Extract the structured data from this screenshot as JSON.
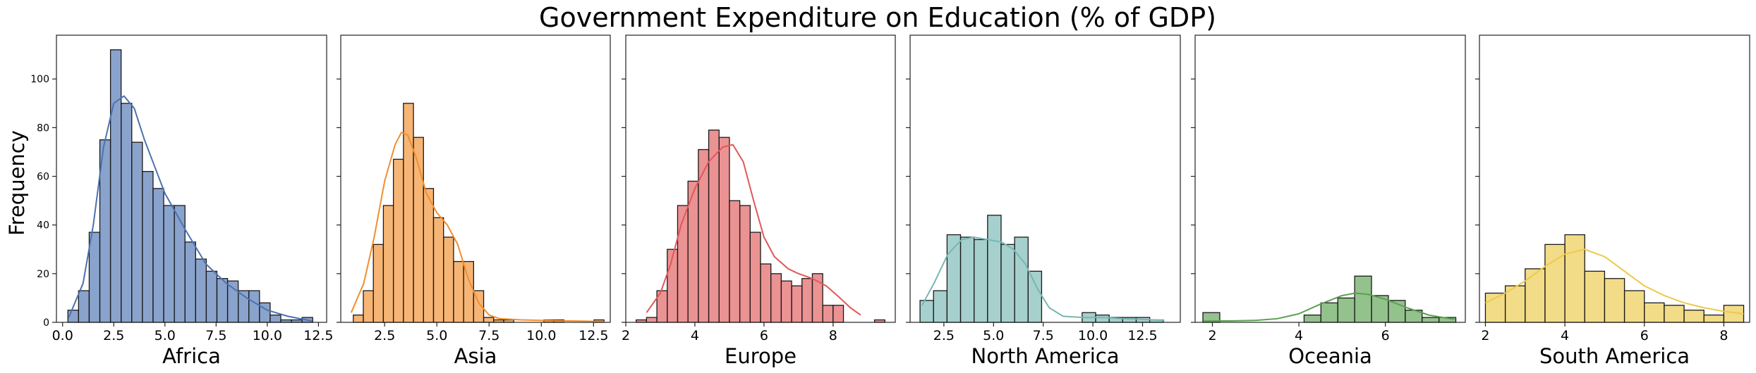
{
  "figure": {
    "title": "Government Expenditure on Education (% of GDP)",
    "ylabel": "Frequency",
    "shared_y_ticks": [
      "0",
      "20",
      "40",
      "60",
      "80",
      "100"
    ]
  },
  "chart_data": [
    {
      "type": "bar",
      "xlabel": "Africa",
      "color": "#4C72B0",
      "xlim": [
        -0.3,
        12.9
      ],
      "ylim": [
        0,
        118
      ],
      "xticks": [
        0.0,
        2.5,
        5.0,
        7.5,
        10.0,
        12.5
      ],
      "xtick_labels": [
        "0.0",
        "2.5",
        "5.0",
        "7.5",
        "10.0",
        "12.5"
      ],
      "yticks": [
        0,
        20,
        40,
        60,
        80,
        100
      ],
      "ytick_labels": [
        "0",
        "20",
        "40",
        "60",
        "80",
        "100"
      ],
      "bin_edges": [
        0.26,
        0.78,
        1.3,
        1.82,
        2.34,
        2.86,
        3.38,
        3.9,
        4.42,
        4.94,
        5.46,
        5.98,
        6.5,
        7.02,
        7.54,
        8.06,
        8.58,
        9.1,
        9.62,
        10.14,
        10.66,
        11.18,
        11.7,
        12.22
      ],
      "counts": [
        5,
        13,
        37,
        75,
        112,
        90,
        74,
        62,
        55,
        48,
        48,
        33,
        26,
        21,
        18,
        17,
        13,
        13,
        8,
        3,
        1,
        1,
        2
      ],
      "kde_x": [
        0.3,
        1.0,
        1.5,
        2.0,
        2.5,
        3.0,
        3.5,
        4.0,
        5.0,
        6.0,
        7.0,
        8.0,
        9.0,
        10.0,
        11.0,
        12.2
      ],
      "kde_y": [
        2,
        16,
        40,
        72,
        90,
        93,
        88,
        75,
        53,
        38,
        24,
        16,
        10,
        5,
        2.5,
        0.5
      ]
    },
    {
      "type": "bar",
      "xlabel": "Asia",
      "color": "#F28E2B",
      "xlim": [
        0.4,
        13.3
      ],
      "ylim": [
        0,
        118
      ],
      "xticks": [
        2.5,
        5.0,
        7.5,
        10.0,
        12.5
      ],
      "xtick_labels": [
        "2.5",
        "5.0",
        "7.5",
        "10.0",
        "12.5"
      ],
      "yticks": [
        0,
        20,
        40,
        60,
        80,
        100
      ],
      "ytick_labels": [],
      "bin_edges": [
        1.0,
        1.48,
        1.96,
        2.44,
        2.92,
        3.4,
        3.88,
        4.36,
        4.84,
        5.32,
        5.8,
        6.28,
        6.76,
        7.24,
        7.72,
        8.2,
        8.68,
        9.16,
        9.64,
        10.12,
        10.6,
        11.08,
        11.56,
        12.04,
        12.52,
        13.0
      ],
      "counts": [
        3,
        13,
        32,
        48,
        67,
        90,
        76,
        55,
        43,
        35,
        25,
        25,
        13,
        2,
        1,
        1,
        0,
        0,
        0,
        1,
        1,
        0,
        0,
        0,
        1
      ],
      "kde_x": [
        0.9,
        1.5,
        2.0,
        2.5,
        3.0,
        3.3,
        3.6,
        4.0,
        4.5,
        5.0,
        5.5,
        6.0,
        6.5,
        7.0,
        7.5,
        8.0,
        9.0,
        10.0,
        11.0,
        12.0,
        13.0
      ],
      "kde_y": [
        4,
        16,
        35,
        58,
        73,
        78,
        77,
        68,
        53,
        45,
        40,
        32,
        18,
        8,
        3,
        1.5,
        1,
        0.8,
        0.6,
        0.5,
        0.3
      ]
    },
    {
      "type": "bar",
      "xlabel": "Europe",
      "color": "#E15759",
      "xlim": [
        2.0,
        9.8
      ],
      "ylim": [
        0,
        118
      ],
      "xticks": [
        2,
        4,
        6,
        8
      ],
      "xtick_labels": [
        "2",
        "4",
        "6",
        "8"
      ],
      "yticks": [
        0,
        20,
        40,
        60,
        80,
        100
      ],
      "ytick_labels": [],
      "bin_edges": [
        2.3,
        2.6,
        2.9,
        3.2,
        3.5,
        3.8,
        4.1,
        4.4,
        4.7,
        5.0,
        5.3,
        5.6,
        5.9,
        6.2,
        6.5,
        6.8,
        7.1,
        7.4,
        7.7,
        8.0,
        8.3,
        8.6,
        8.9,
        9.2,
        9.5
      ],
      "counts": [
        1,
        2,
        13,
        30,
        48,
        58,
        71,
        79,
        76,
        50,
        48,
        37,
        24,
        20,
        17,
        15,
        18,
        20,
        7,
        7,
        0,
        0,
        0,
        1
      ],
      "kde_x": [
        2.6,
        3.0,
        3.3,
        3.6,
        4.0,
        4.4,
        4.8,
        5.1,
        5.4,
        5.7,
        6.0,
        6.3,
        6.7,
        7.0,
        7.4,
        7.8,
        8.2,
        8.5,
        8.8
      ],
      "kde_y": [
        4,
        12,
        24,
        40,
        55,
        66,
        72,
        73,
        66,
        50,
        35,
        27,
        22,
        20,
        18,
        15,
        10,
        6,
        3
      ]
    },
    {
      "type": "bar",
      "xlabel": "North America",
      "color": "#76B7B2",
      "xlim": [
        0.8,
        14.4
      ],
      "ylim": [
        0,
        118
      ],
      "xticks": [
        2.5,
        5.0,
        7.5,
        10.0,
        12.5
      ],
      "xtick_labels": [
        "2.5",
        "5.0",
        "7.5",
        "10.0",
        "12.5"
      ],
      "yticks": [
        0,
        20,
        40,
        60,
        80,
        100
      ],
      "ytick_labels": [],
      "bin_edges": [
        1.3,
        1.98,
        2.66,
        3.34,
        4.02,
        4.7,
        5.38,
        6.06,
        6.74,
        7.42,
        8.1,
        8.78,
        9.46,
        10.14,
        10.82,
        11.5,
        12.18,
        12.86,
        13.54
      ],
      "counts": [
        9,
        13,
        36,
        35,
        34,
        44,
        32,
        35,
        21,
        0,
        0,
        0,
        4,
        3,
        2,
        2,
        2,
        1
      ],
      "kde_x": [
        1.4,
        2.0,
        2.7,
        3.4,
        4.0,
        4.7,
        5.4,
        6.0,
        6.6,
        7.2,
        7.8,
        8.5,
        9.5,
        10.5,
        11.5,
        12.5,
        13.6
      ],
      "kde_y": [
        7,
        16,
        28,
        34,
        35,
        34,
        33,
        30,
        24,
        14,
        6,
        2.5,
        2,
        2,
        1.5,
        1.2,
        0.8
      ]
    },
    {
      "type": "bar",
      "xlabel": "Oceania",
      "color": "#59A14F",
      "xlim": [
        1.6,
        7.85
      ],
      "ylim": [
        0,
        118
      ],
      "xticks": [
        2,
        4,
        6
      ],
      "xtick_labels": [
        "2",
        "4",
        "6"
      ],
      "yticks": [
        0,
        20,
        40,
        60,
        80,
        100
      ],
      "ytick_labels": [],
      "bin_edges": [
        1.78,
        2.17,
        2.56,
        2.95,
        3.34,
        3.73,
        4.12,
        4.51,
        4.9,
        5.29,
        5.68,
        6.07,
        6.46,
        6.85,
        7.24,
        7.63
      ],
      "counts": [
        4,
        0,
        0,
        0,
        0,
        0,
        3,
        8,
        10,
        19,
        11,
        9,
        5,
        2,
        2
      ],
      "kde_x": [
        1.8,
        2.5,
        3.0,
        3.5,
        4.0,
        4.5,
        5.0,
        5.3,
        5.6,
        6.0,
        6.5,
        7.0,
        7.6
      ],
      "kde_y": [
        0.5,
        0.6,
        0.8,
        1.5,
        3.5,
        7.5,
        11,
        12,
        11.5,
        9.5,
        6,
        3,
        1.2
      ]
    },
    {
      "type": "bar",
      "xlabel": "South America",
      "color": "#EDC948",
      "xlim": [
        1.85,
        8.65
      ],
      "ylim": [
        0,
        118
      ],
      "xticks": [
        2,
        4,
        6,
        8
      ],
      "xtick_labels": [
        "2",
        "4",
        "6",
        "8"
      ],
      "yticks": [
        0,
        20,
        40,
        60,
        80,
        100
      ],
      "ytick_labels": [],
      "bin_edges": [
        2.0,
        2.5,
        3.0,
        3.5,
        4.0,
        4.5,
        5.0,
        5.5,
        6.0,
        6.5,
        7.0,
        7.5,
        8.0,
        8.5
      ],
      "counts": [
        12,
        15,
        22,
        32,
        36,
        21,
        18,
        13,
        8,
        7,
        5,
        3,
        7
      ],
      "kde_x": [
        2.0,
        2.5,
        3.0,
        3.5,
        4.0,
        4.5,
        5.0,
        5.5,
        6.0,
        6.5,
        7.0,
        7.5,
        8.0,
        8.5
      ],
      "kde_y": [
        8,
        12,
        17,
        23,
        28,
        30,
        27,
        21,
        15,
        11,
        8,
        6,
        4.5,
        3.5
      ]
    }
  ]
}
